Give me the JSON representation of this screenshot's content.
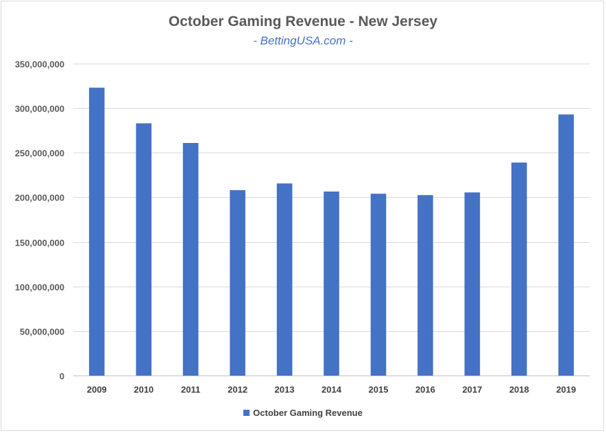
{
  "chart_data": {
    "type": "bar",
    "title": "October Gaming Revenue - New Jersey",
    "subtitle": "- BettingUSA.com -",
    "categories": [
      "2009",
      "2010",
      "2011",
      "2012",
      "2013",
      "2014",
      "2015",
      "2016",
      "2017",
      "2018",
      "2019"
    ],
    "series": [
      {
        "name": "October Gaming Revenue",
        "color": "#4472c4",
        "values": [
          323000000,
          283000000,
          261000000,
          208000000,
          215500000,
          206500000,
          204000000,
          202500000,
          205500000,
          239000000,
          293000000
        ]
      }
    ],
    "ylim": [
      0,
      350000000
    ],
    "yticks": [
      0,
      50000000,
      100000000,
      150000000,
      200000000,
      250000000,
      300000000,
      350000000
    ],
    "ytick_labels": [
      "0",
      "50,000,000",
      "100,000,000",
      "150,000,000",
      "200,000,000",
      "250,000,000",
      "300,000,000",
      "350,000,000"
    ],
    "xlabel": "",
    "ylabel": "",
    "grid": true,
    "legend_position": "bottom"
  }
}
